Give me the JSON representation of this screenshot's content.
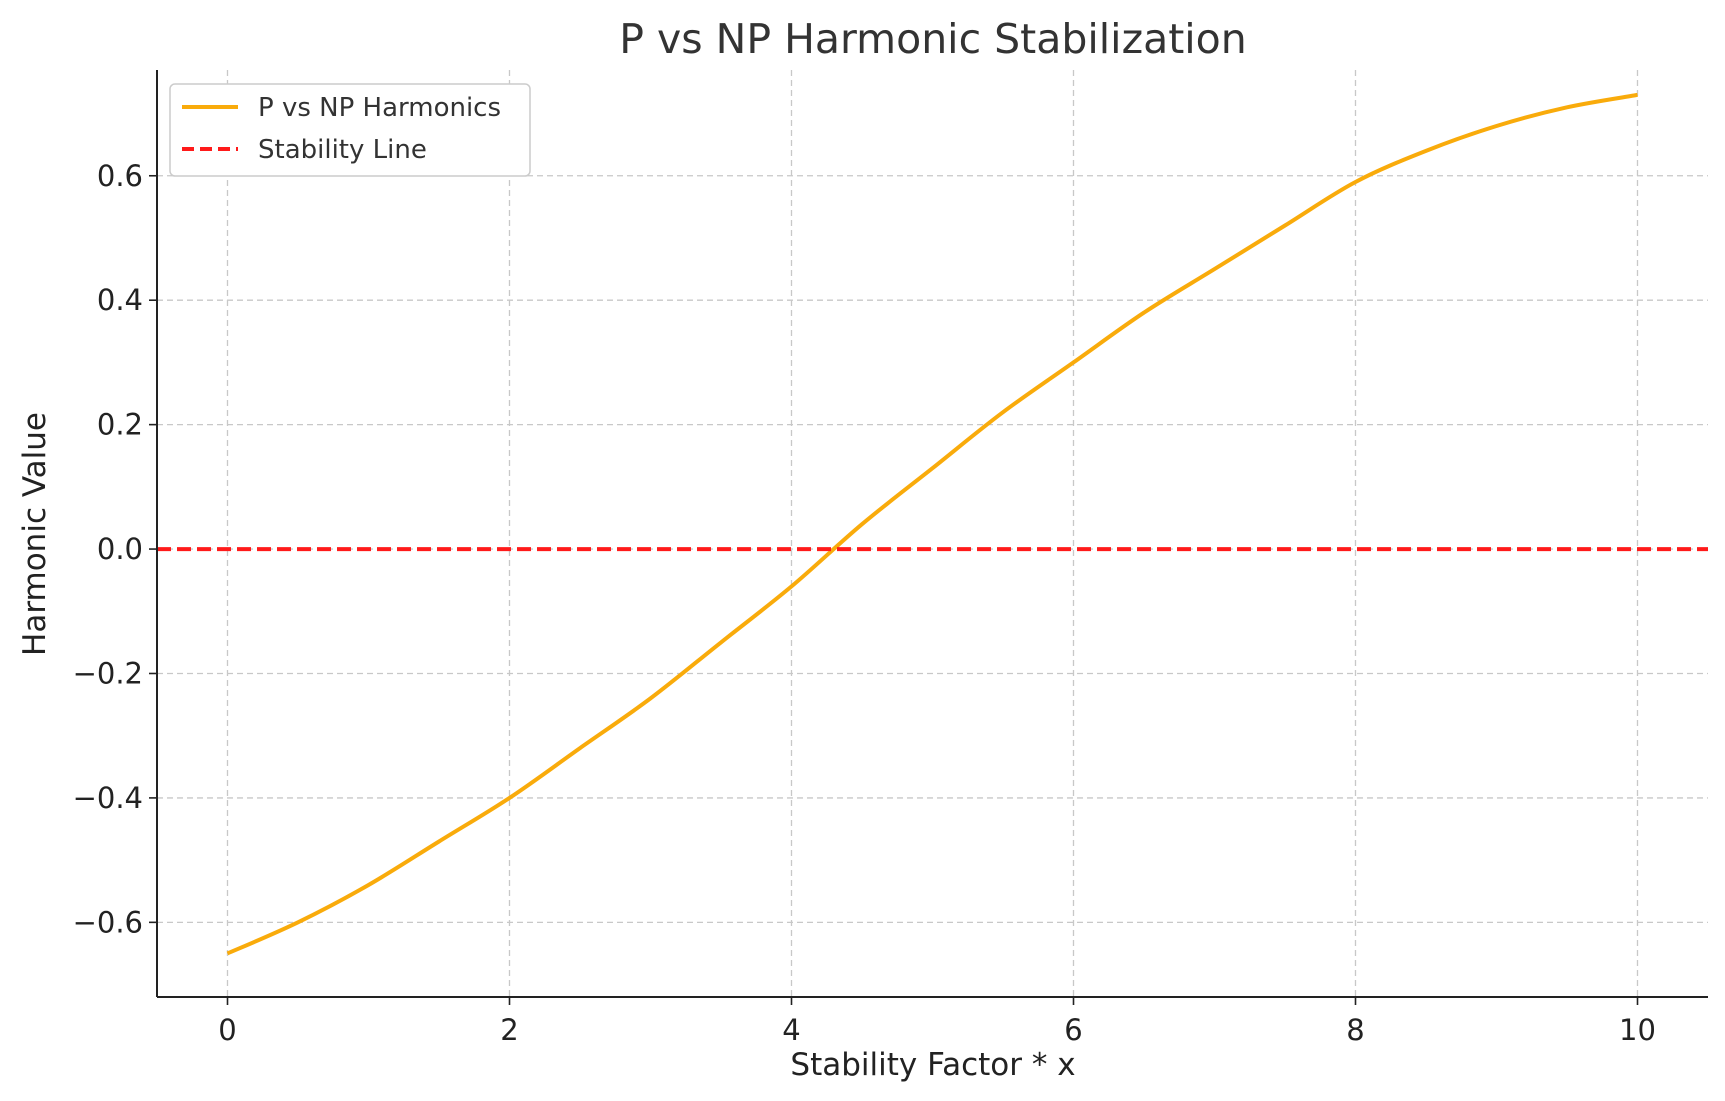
{
  "chart_data": {
    "type": "line",
    "title": "P vs NP Harmonic Stabilization",
    "xlabel": "Stability Factor * x",
    "ylabel": "Harmonic Value",
    "xlim": [
      -0.5,
      10.5
    ],
    "ylim": [
      -0.72,
      0.77
    ],
    "x_ticks": [
      0,
      2,
      4,
      6,
      8,
      10
    ],
    "x_tick_labels": [
      "0",
      "2",
      "4",
      "6",
      "8",
      "10"
    ],
    "y_ticks": [
      -0.6,
      -0.4,
      -0.2,
      0.0,
      0.2,
      0.4,
      0.6
    ],
    "y_tick_labels": [
      "−0.6",
      "−0.4",
      "−0.2",
      "0.0",
      "0.2",
      "0.4",
      "0.6"
    ],
    "grid": true,
    "legend_position": "top-left",
    "series": [
      {
        "name": "P vs NP Harmonics",
        "color": "#f9ab0b",
        "style": "solid",
        "x": [
          0,
          0.5,
          1,
          1.5,
          2,
          2.5,
          3,
          3.5,
          4,
          4.5,
          5,
          5.5,
          6,
          6.5,
          7,
          7.5,
          8,
          8.5,
          9,
          9.5,
          10
        ],
        "y": [
          -0.65,
          -0.6,
          -0.54,
          -0.47,
          -0.4,
          -0.32,
          -0.24,
          -0.15,
          -0.06,
          0.04,
          0.13,
          0.22,
          0.3,
          0.38,
          0.45,
          0.52,
          0.59,
          0.64,
          0.68,
          0.71,
          0.73
        ]
      },
      {
        "name": "Stability Line",
        "color": "#ff1a1a",
        "style": "dashed",
        "x": [
          -0.5,
          10.5
        ],
        "y": [
          0.0,
          0.0
        ]
      }
    ]
  }
}
